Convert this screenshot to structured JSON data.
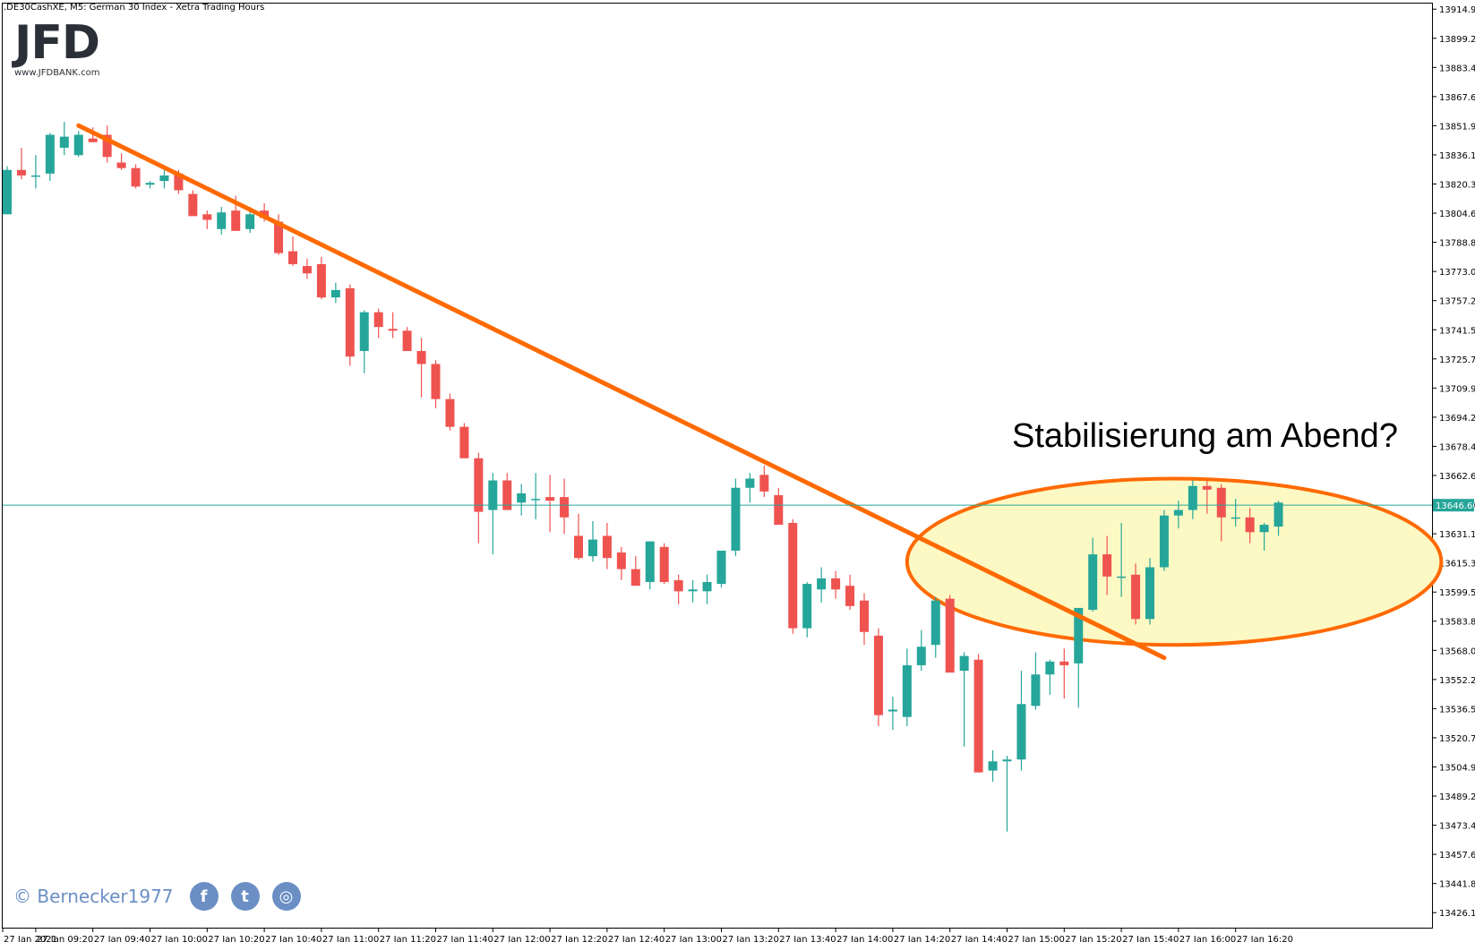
{
  "header": {
    "symbol_line": ".DE30CashXE, M5:  German 30 Index  - Xetra Trading Hours"
  },
  "logo": {
    "text": "JFD",
    "url": "www.JFDBANK.com"
  },
  "annotation": "Stabilisierung am Abend?",
  "credit": "© Bernecker1977",
  "social": [
    {
      "icon": "facebook-icon",
      "glyph": "f"
    },
    {
      "icon": "twitter-icon",
      "glyph": "t"
    },
    {
      "icon": "instagram-icon",
      "glyph": "◎"
    }
  ],
  "colors": {
    "bull": "#26a69a",
    "bear": "#ef5350",
    "trendline": "#ff6a00",
    "ellipse_fill": "#fdf9c4",
    "ellipse_stroke": "#ff6a00",
    "price_line": "#26a69a",
    "price_tag_bg": "#26a69a"
  },
  "chart_data": {
    "type": "candlestick",
    "ylim": [
      13418.0,
      13918.0
    ],
    "y_ticks": [
      "13914.99",
      "13899.22",
      "13883.45",
      "13867.68",
      "13851.91",
      "13836.14",
      "13820.37",
      "13804.60",
      "13788.83",
      "13773.06",
      "13757.29",
      "13741.52",
      "13725.75",
      "13709.98",
      "13694.21",
      "13678.44",
      "13662.67",
      "13646.90",
      "13631.13",
      "13615.36",
      "13599.59",
      "13583.82",
      "13568.05",
      "13552.28",
      "13536.51",
      "13520.74",
      "13504.97",
      "13489.20",
      "13473.43",
      "13457.66",
      "13441.89",
      "13426.12"
    ],
    "x_ticks": [
      "27 Jan 2021",
      "27 Jan 09:20",
      "27 Jan 09:40",
      "27 Jan 10:00",
      "27 Jan 10:20",
      "27 Jan 10:40",
      "27 Jan 11:00",
      "27 Jan 11:20",
      "27 Jan 11:40",
      "27 Jan 12:00",
      "27 Jan 12:20",
      "27 Jan 12:40",
      "27 Jan 13:00",
      "27 Jan 13:20",
      "27 Jan 13:40",
      "27 Jan 14:00",
      "27 Jan 14:20",
      "27 Jan 14:40",
      "27 Jan 15:00",
      "27 Jan 15:20",
      "27 Jan 15:40",
      "27 Jan 16:00",
      "27 Jan 16:20"
    ],
    "current_price": "13646.60",
    "current_price_value": 13646.6,
    "ohlc": [
      [
        13804,
        13830,
        13804,
        13828
      ],
      [
        13828,
        13840,
        13823,
        13825
      ],
      [
        13825,
        13836,
        13818,
        13825
      ],
      [
        13826,
        13848,
        13822,
        13847
      ],
      [
        13840,
        13854,
        13836,
        13846
      ],
      [
        13836,
        13849,
        13835,
        13847
      ],
      [
        13845,
        13851,
        13843,
        13843
      ],
      [
        13847,
        13852,
        13832,
        13835
      ],
      [
        13832,
        13837,
        13828,
        13829
      ],
      [
        13829,
        13831,
        13818,
        13819
      ],
      [
        13820,
        13822,
        13818,
        13821
      ],
      [
        13822,
        13828,
        13818,
        13825
      ],
      [
        13826,
        13828,
        13815,
        13817
      ],
      [
        13815,
        13817,
        13804,
        13803
      ],
      [
        13804,
        13806,
        13796,
        13801
      ],
      [
        13796,
        13808,
        13793,
        13805
      ],
      [
        13806,
        13814,
        13796,
        13795
      ],
      [
        13796,
        13808,
        13794,
        13804
      ],
      [
        13806,
        13810,
        13800,
        13802
      ],
      [
        13800,
        13804,
        13782,
        13783
      ],
      [
        13784,
        13792,
        13776,
        13777
      ],
      [
        13776,
        13780,
        13769,
        13772
      ],
      [
        13777,
        13781,
        13758,
        13759
      ],
      [
        13759,
        13767,
        13756,
        13763
      ],
      [
        13764,
        13766,
        13722,
        13727
      ],
      [
        13730,
        13752,
        13718,
        13751
      ],
      [
        13751,
        13753,
        13737,
        13743
      ],
      [
        13742,
        13751,
        13737,
        13741
      ],
      [
        13741,
        13743,
        13730,
        13730
      ],
      [
        13730,
        13737,
        13705,
        13723
      ],
      [
        13723,
        13725,
        13699,
        13704
      ],
      [
        13704,
        13707,
        13687,
        13689
      ],
      [
        13689,
        13691,
        13672,
        13672
      ],
      [
        13672,
        13675,
        13626,
        13643
      ],
      [
        13644,
        13664,
        13620,
        13660
      ],
      [
        13660,
        13664,
        13645,
        13644
      ],
      [
        13648,
        13658,
        13641,
        13653
      ],
      [
        13650,
        13664,
        13639,
        13650
      ],
      [
        13651,
        13663,
        13632,
        13649
      ],
      [
        13651,
        13661,
        13631,
        13640
      ],
      [
        13630,
        13642,
        13617,
        13618
      ],
      [
        13619,
        13638,
        13616,
        13628
      ],
      [
        13630,
        13637,
        13612,
        13618
      ],
      [
        13621,
        13624,
        13606,
        13612
      ],
      [
        13612,
        13619,
        13605,
        13603
      ],
      [
        13605,
        13627,
        13601,
        13627
      ],
      [
        13624,
        13626,
        13604,
        13605
      ],
      [
        13606,
        13609,
        13593,
        13600
      ],
      [
        13600,
        13606,
        13594,
        13601
      ],
      [
        13600,
        13609,
        13593,
        13605
      ],
      [
        13604,
        13619,
        13602,
        13622
      ],
      [
        13622,
        13661,
        13619,
        13656
      ],
      [
        13656,
        13664,
        13648,
        13661
      ],
      [
        13663,
        13668,
        13651,
        13654
      ],
      [
        13652,
        13656,
        13638,
        13636
      ],
      [
        13637,
        13639,
        13577,
        13580
      ],
      [
        13580,
        13605,
        13575,
        13604
      ],
      [
        13601,
        13613,
        13594,
        13607
      ],
      [
        13607,
        13611,
        13596,
        13601
      ],
      [
        13603,
        13609,
        13590,
        13592
      ],
      [
        13595,
        13599,
        13571,
        13578
      ],
      [
        13576,
        13580,
        13527,
        13533
      ],
      [
        13535,
        13543,
        13525,
        13536
      ],
      [
        13532,
        13569,
        13527,
        13560
      ],
      [
        13560,
        13579,
        13557,
        13570
      ],
      [
        13571,
        13597,
        13564,
        13595
      ],
      [
        13596,
        13598,
        13557,
        13556
      ],
      [
        13557,
        13567,
        13516,
        13565
      ],
      [
        13563,
        13566,
        13502,
        13502
      ],
      [
        13503,
        13514,
        13497,
        13508
      ],
      [
        13508,
        13511,
        13470,
        13509
      ],
      [
        13509,
        13557,
        13503,
        13539
      ],
      [
        13538,
        13567,
        13536,
        13555
      ],
      [
        13555,
        13563,
        13544,
        13562
      ],
      [
        13562,
        13569,
        13542,
        13560
      ],
      [
        13561,
        13590,
        13537,
        13591
      ],
      [
        13590,
        13629,
        13589,
        13620
      ],
      [
        13620,
        13630,
        13598,
        13608
      ],
      [
        13608,
        13637,
        13597,
        13608
      ],
      [
        13609,
        13615,
        13582,
        13585
      ],
      [
        13585,
        13618,
        13582,
        13613
      ],
      [
        13613,
        13644,
        13611,
        13641
      ],
      [
        13641,
        13649,
        13634,
        13644
      ],
      [
        13644,
        13660,
        13639,
        13657
      ],
      [
        13657,
        13660,
        13642,
        13655
      ],
      [
        13656,
        13658,
        13627,
        13640
      ],
      [
        13640,
        13650,
        13635,
        13640
      ],
      [
        13640,
        13645,
        13626,
        13632
      ],
      [
        13632,
        13637,
        13622,
        13636
      ],
      [
        13635,
        13649,
        13630,
        13648
      ]
    ],
    "trendline": {
      "start_index": 5,
      "start_price": 13852,
      "end_index": 81,
      "end_price": 13564
    },
    "highlight_ellipse": {
      "center_index": 81.7,
      "center_price": 13616,
      "rx_bars": 18.7,
      "ry_price": 45
    }
  }
}
